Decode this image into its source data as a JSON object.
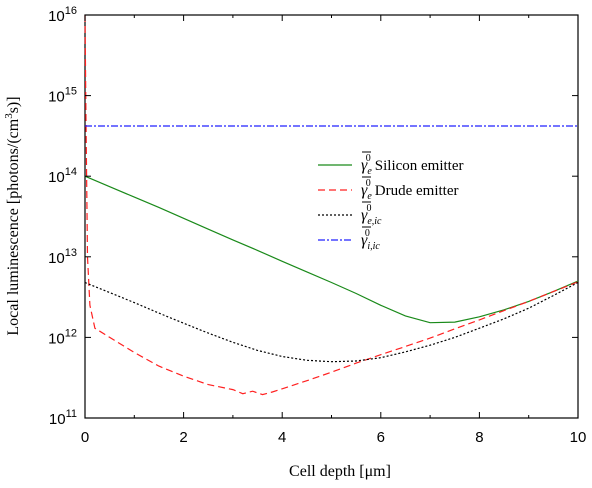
{
  "chart_data": {
    "type": "line",
    "xlabel_parts": [
      "Cell depth [",
      "μ",
      "m]"
    ],
    "ylabel": "Local luminescence [photons/(cm",
    "ylabel_sup": "3",
    "ylabel_tail": "s)]",
    "xlim": [
      0,
      10
    ],
    "ylog": true,
    "ylim": [
      100000000000.0,
      1e+16
    ],
    "x_ticks": [
      "0",
      "2",
      "4",
      "6",
      "8",
      "10"
    ],
    "x_tick_values": [
      0,
      2,
      4,
      6,
      8,
      10
    ],
    "y_ticks": [
      {
        "base": "10",
        "exp": "11",
        "value": 100000000000.0
      },
      {
        "base": "10",
        "exp": "12",
        "value": 1000000000000.0
      },
      {
        "base": "10",
        "exp": "13",
        "value": 10000000000000.0
      },
      {
        "base": "10",
        "exp": "14",
        "value": 100000000000000.0
      },
      {
        "base": "10",
        "exp": "15",
        "value": 1000000000000000.0
      },
      {
        "base": "10",
        "exp": "16",
        "value": 1e+16
      }
    ],
    "grid": false,
    "legend_position": "right-middle",
    "series": [
      {
        "legend_symbol": "γ",
        "legend_sub": "e",
        "legend_sup": "0",
        "name": "Silicon emitter",
        "color": "#1a8a1a",
        "dash": "solid",
        "x": [
          0,
          0.5,
          1,
          1.5,
          2,
          2.5,
          3,
          3.5,
          4,
          4.5,
          5,
          5.5,
          6,
          6.5,
          7,
          7.5,
          8,
          8.5,
          9,
          9.5,
          10
        ],
        "y": [
          100000000000000.0,
          74000000000000.0,
          55000000000000.0,
          41000000000000.0,
          30000000000000.0,
          22000000000000.0,
          16200000000000.0,
          12000000000000.0,
          8800000000000.0,
          6500000000000.0,
          4800000000000.0,
          3500000000000.0,
          2500000000000.0,
          1850000000000.0,
          1520000000000.0,
          1550000000000.0,
          1800000000000.0,
          2200000000000.0,
          2800000000000.0,
          3700000000000.0,
          5000000000000.0
        ]
      },
      {
        "legend_symbol": "γ",
        "legend_sub": "e",
        "legend_sup": "0",
        "name": "Drude emitter",
        "color": "#ff2020",
        "dash": "dashed",
        "x": [
          0,
          0.02,
          0.05,
          0.1,
          0.2,
          0.5,
          1,
          1.5,
          2,
          2.5,
          3,
          3.2,
          3.4,
          3.6,
          3.8,
          4,
          4.5,
          5,
          5.5,
          6,
          6.5,
          7,
          7.5,
          8,
          8.5,
          9,
          9.5,
          10
        ],
        "y": [
          1e+16,
          500000000000000.0,
          10000000000000.0,
          2500000000000.0,
          1300000000000.0,
          1000000000000.0,
          650000000000.0,
          440000000000.0,
          330000000000.0,
          260000000000.0,
          225000000000.0,
          200000000000.0,
          215000000000.0,
          195000000000.0,
          210000000000.0,
          230000000000.0,
          290000000000.0,
          370000000000.0,
          480000000000.0,
          610000000000.0,
          770000000000.0,
          980000000000.0,
          1280000000000.0,
          1650000000000.0,
          2150000000000.0,
          2800000000000.0,
          3700000000000.0,
          4900000000000.0
        ]
      },
      {
        "legend_symbol": "γ",
        "legend_sub": "e,ic",
        "legend_sup": "0",
        "name": "",
        "color": "#000000",
        "dash": "dotted",
        "x": [
          0,
          0.5,
          1,
          1.5,
          2,
          2.5,
          3,
          3.5,
          4,
          4.5,
          5,
          5.5,
          6,
          6.5,
          7,
          7.5,
          8,
          8.5,
          9,
          9.5,
          10
        ],
        "y": [
          4800000000000.0,
          3600000000000.0,
          2700000000000.0,
          2000000000000.0,
          1500000000000.0,
          1130000000000.0,
          870000000000.0,
          690000000000.0,
          580000000000.0,
          520000000000.0,
          500000000000.0,
          510000000000.0,
          560000000000.0,
          660000000000.0,
          800000000000.0,
          1000000000000.0,
          1300000000000.0,
          1700000000000.0,
          2300000000000.0,
          3300000000000.0,
          4800000000000.0
        ]
      },
      {
        "legend_symbol": "γ",
        "legend_sub": "i,ic",
        "legend_sup": "0",
        "name": "",
        "color": "#2020ff",
        "dash": "dashdot",
        "x": [
          0,
          10
        ],
        "y": [
          420000000000000.0,
          420000000000000.0
        ]
      }
    ]
  }
}
